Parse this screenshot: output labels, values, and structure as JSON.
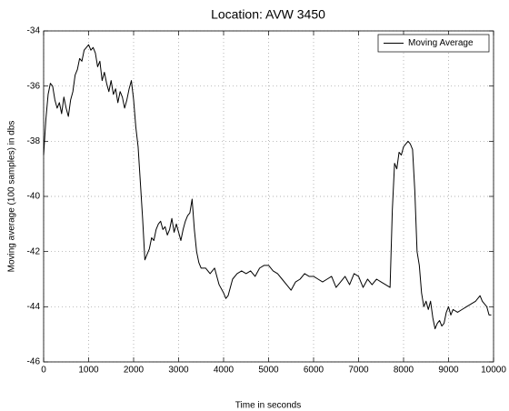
{
  "chart_data": {
    "type": "line",
    "title": "Location: AVW 3450",
    "xlabel": "Time in seconds",
    "ylabel": "Moving average (100 samples) in dbs",
    "xlim": [
      0,
      10000
    ],
    "ylim": [
      -46,
      -34
    ],
    "xticks": [
      0,
      1000,
      2000,
      3000,
      4000,
      5000,
      6000,
      7000,
      8000,
      9000,
      10000
    ],
    "yticks": [
      -46,
      -44,
      -42,
      -40,
      -38,
      -36,
      -34
    ],
    "grid": true,
    "legend_position": "upper-right",
    "x": [
      0,
      50,
      100,
      150,
      200,
      250,
      300,
      350,
      400,
      450,
      500,
      550,
      600,
      650,
      700,
      750,
      800,
      850,
      900,
      950,
      1000,
      1050,
      1100,
      1150,
      1200,
      1250,
      1300,
      1350,
      1400,
      1450,
      1500,
      1550,
      1600,
      1650,
      1700,
      1750,
      1800,
      1850,
      1900,
      1950,
      2000,
      2050,
      2100,
      2150,
      2200,
      2250,
      2300,
      2350,
      2400,
      2450,
      2500,
      2550,
      2600,
      2650,
      2700,
      2750,
      2800,
      2850,
      2900,
      2950,
      3000,
      3050,
      3100,
      3150,
      3200,
      3250,
      3300,
      3350,
      3400,
      3450,
      3500,
      3600,
      3700,
      3800,
      3900,
      4000,
      4050,
      4100,
      4200,
      4300,
      4400,
      4500,
      4600,
      4700,
      4800,
      4900,
      5000,
      5100,
      5200,
      5300,
      5400,
      5500,
      5600,
      5700,
      5800,
      5900,
      6000,
      6100,
      6200,
      6300,
      6400,
      6500,
      6600,
      6700,
      6800,
      6900,
      7000,
      7100,
      7200,
      7300,
      7400,
      7500,
      7600,
      7700,
      7750,
      7800,
      7850,
      7900,
      7950,
      8000,
      8050,
      8100,
      8150,
      8200,
      8250,
      8300,
      8350,
      8400,
      8450,
      8500,
      8550,
      8600,
      8650,
      8700,
      8750,
      8800,
      8850,
      8900,
      8950,
      9000,
      9050,
      9100,
      9200,
      9300,
      9400,
      9500,
      9600,
      9700,
      9750,
      9800,
      9850,
      9900,
      9950
    ],
    "series": [
      {
        "name": "Moving Average",
        "color": "#000000",
        "values": [
          -38.5,
          -37.2,
          -36.3,
          -35.9,
          -36.0,
          -36.5,
          -36.8,
          -36.6,
          -37.0,
          -36.4,
          -36.8,
          -37.1,
          -36.5,
          -36.2,
          -35.6,
          -35.4,
          -35.0,
          -35.1,
          -34.7,
          -34.6,
          -34.5,
          -34.7,
          -34.6,
          -34.8,
          -35.3,
          -35.1,
          -35.8,
          -35.5,
          -35.9,
          -36.2,
          -35.8,
          -36.3,
          -36.1,
          -36.6,
          -36.2,
          -36.4,
          -36.8,
          -36.5,
          -36.1,
          -35.8,
          -36.5,
          -37.5,
          -38.2,
          -39.5,
          -40.8,
          -42.3,
          -42.1,
          -41.9,
          -41.5,
          -41.6,
          -41.2,
          -41.0,
          -40.9,
          -41.2,
          -41.1,
          -41.4,
          -41.2,
          -40.8,
          -41.3,
          -41.0,
          -41.3,
          -41.6,
          -41.2,
          -40.9,
          -40.7,
          -40.6,
          -40.1,
          -41.2,
          -42.0,
          -42.4,
          -42.6,
          -42.6,
          -42.8,
          -42.6,
          -43.2,
          -43.5,
          -43.7,
          -43.6,
          -43.0,
          -42.8,
          -42.7,
          -42.8,
          -42.7,
          -42.9,
          -42.6,
          -42.5,
          -42.5,
          -42.7,
          -42.8,
          -43.0,
          -43.2,
          -43.4,
          -43.1,
          -43.0,
          -42.8,
          -42.9,
          -42.9,
          -43.0,
          -43.1,
          -43.0,
          -42.9,
          -43.3,
          -43.1,
          -42.9,
          -43.2,
          -42.8,
          -42.9,
          -43.3,
          -43.0,
          -43.2,
          -43.0,
          -43.1,
          -43.2,
          -43.3,
          -40.5,
          -38.8,
          -39.0,
          -38.4,
          -38.5,
          -38.2,
          -38.1,
          -38.0,
          -38.1,
          -38.3,
          -39.8,
          -42.0,
          -42.5,
          -43.5,
          -44.0,
          -43.8,
          -44.1,
          -43.8,
          -44.4,
          -44.8,
          -44.6,
          -44.5,
          -44.7,
          -44.6,
          -44.2,
          -44.0,
          -44.3,
          -44.1,
          -44.2,
          -44.1,
          -44.0,
          -43.9,
          -43.8,
          -43.6,
          -43.8,
          -43.9,
          -44.0,
          -44.3,
          -44.3
        ]
      }
    ]
  }
}
